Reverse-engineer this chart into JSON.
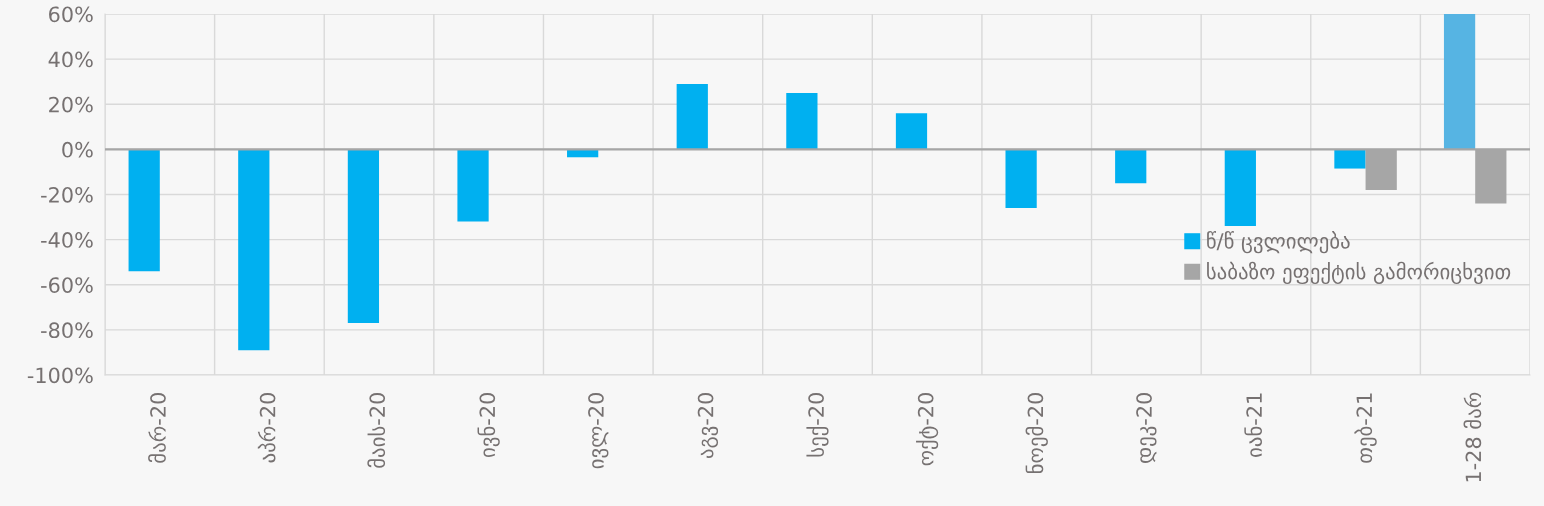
{
  "chart_data": {
    "type": "bar",
    "categories": [
      "მარ-20",
      "აპრ-20",
      "მაის-20",
      "ივნ-20",
      "ივლ-20",
      "აგვ-20",
      "სექ-20",
      "ოქტ-20",
      "ნოემ-20",
      "დეკ-20",
      "იან-21",
      "თებ-21",
      "1-28 მარ"
    ],
    "series": [
      {
        "name": "წ/წ ცვლილება",
        "color": "#00b0f0",
        "colors": [
          "#00b0f0",
          "#00b0f0",
          "#00b0f0",
          "#00b0f0",
          "#00b0f0",
          "#00b0f0",
          "#00b0f0",
          "#00b0f0",
          "#00b0f0",
          "#00b0f0",
          "#00b0f0",
          "#00b0f0",
          "#56b4e3"
        ],
        "values": [
          -54,
          -89,
          -77,
          -32,
          -3.5,
          29,
          25,
          16,
          -26,
          -15,
          -34,
          -8.5,
          60
        ]
      },
      {
        "name": "საბაზო ეფექტის გამორიცხვით",
        "color": "#a6a6a6",
        "values": [
          null,
          null,
          null,
          null,
          null,
          null,
          null,
          null,
          null,
          null,
          null,
          -18,
          -24
        ]
      }
    ],
    "ylim": [
      -100,
      60
    ],
    "yticks": [
      {
        "value": -100,
        "label": "-100%"
      },
      {
        "value": -80,
        "label": "-80%"
      },
      {
        "value": -60,
        "label": "-60%"
      },
      {
        "value": -40,
        "label": "-40%"
      },
      {
        "value": -20,
        "label": "-20%"
      },
      {
        "value": 0,
        "label": "0%"
      },
      {
        "value": 20,
        "label": "20%"
      },
      {
        "value": 40,
        "label": "40%"
      },
      {
        "value": 60,
        "label": "60%"
      }
    ],
    "grid": true,
    "legend": "right"
  }
}
